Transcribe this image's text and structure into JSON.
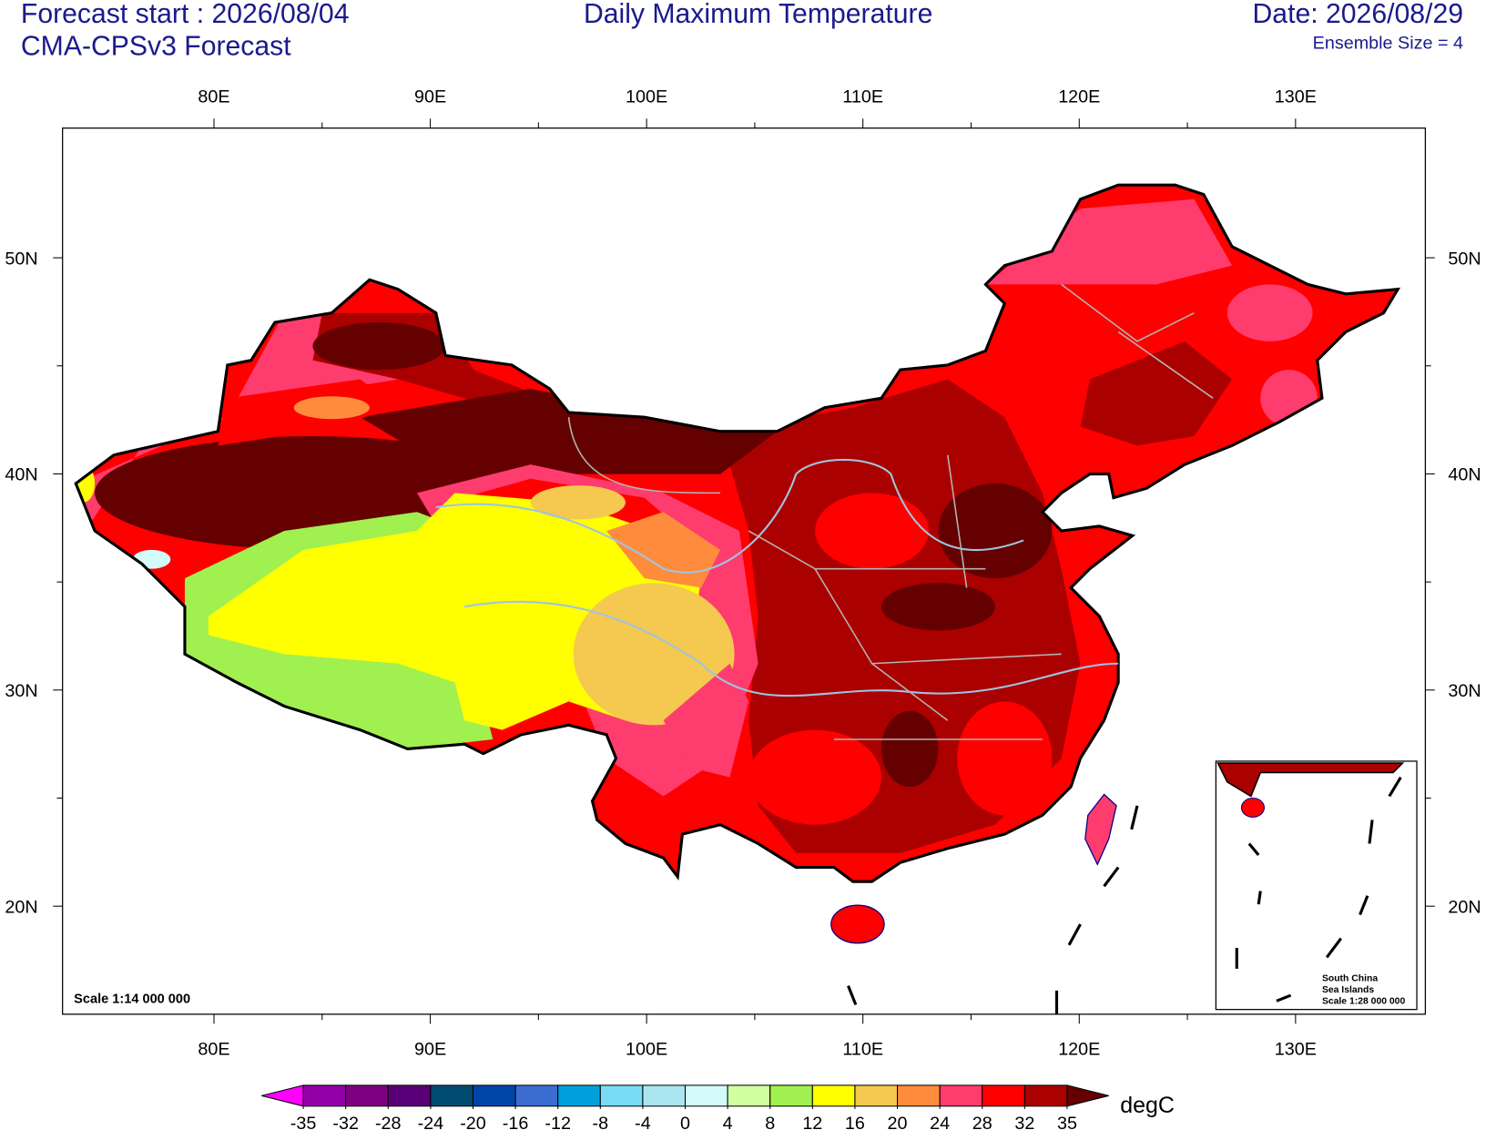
{
  "header": {
    "forecast_start": "Forecast start : 2026/08/04",
    "model": "CMA-CPSv3 Forecast",
    "title": "Daily Maximum Temperature",
    "date": "Date: 2026/08/29",
    "ensemble": "Ensemble Size = 4"
  },
  "map": {
    "lon_lim": [
      73,
      136
    ],
    "lat_lim": [
      15,
      56
    ],
    "lon_ticks": [
      {
        "value": 80,
        "label": "80E"
      },
      {
        "value": 90,
        "label": "90E"
      },
      {
        "value": 100,
        "label": "100E"
      },
      {
        "value": 110,
        "label": "110E"
      },
      {
        "value": 120,
        "label": "120E"
      },
      {
        "value": 130,
        "label": "130E"
      }
    ],
    "lat_ticks": [
      {
        "value": 20,
        "label": "20N"
      },
      {
        "value": 30,
        "label": "30N"
      },
      {
        "value": 40,
        "label": "40N"
      },
      {
        "value": 50,
        "label": "50N"
      }
    ],
    "scale_label": "Scale 1:14 000 000",
    "inset_labels": [
      "South China",
      "Sea Islands",
      "Scale 1:28 000 000"
    ]
  },
  "colorbar": {
    "levels": [
      -35,
      -32,
      -28,
      -24,
      -20,
      -16,
      -12,
      -8,
      -4,
      0,
      4,
      8,
      12,
      16,
      20,
      24,
      28,
      32,
      35
    ],
    "colors": [
      "#ff00ff",
      "#9400a8",
      "#7e0082",
      "#5a0078",
      "#004b70",
      "#0046a8",
      "#3c6ed2",
      "#00a0dc",
      "#78dcf5",
      "#aae6f0",
      "#d2fafa",
      "#d2ffa0",
      "#a0f050",
      "#ffff00",
      "#f5c850",
      "#ff8c3c",
      "#ff3c6e",
      "#ff0000",
      "#aa0000",
      "#640000"
    ],
    "unit": "degC"
  }
}
